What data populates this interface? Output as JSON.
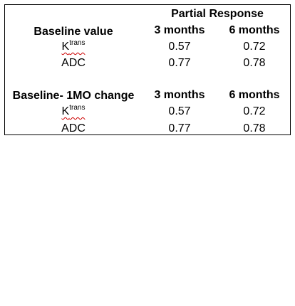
{
  "table": {
    "group_header": "Partial Response",
    "sections": [
      {
        "title": "Baseline value",
        "col_headers": [
          "3 months",
          "6 months"
        ],
        "rows": [
          {
            "label_base": "K",
            "label_sup": "trans",
            "values": [
              "0.57",
              "0.72"
            ]
          },
          {
            "label": "ADC",
            "values": [
              "0.77",
              "0.78"
            ]
          }
        ]
      },
      {
        "title": "Baseline- 1MO change",
        "col_headers": [
          "3 months",
          "6 months"
        ],
        "rows": [
          {
            "label_base": "K",
            "label_sup": "trans",
            "values": [
              "0.57",
              "0.72"
            ]
          },
          {
            "label": "ADC",
            "values": [
              "0.77",
              "0.78"
            ]
          }
        ]
      }
    ]
  }
}
